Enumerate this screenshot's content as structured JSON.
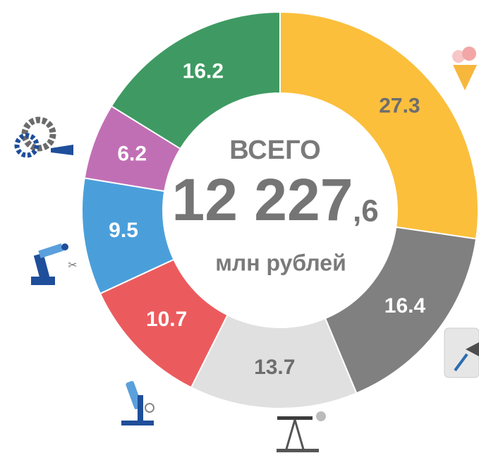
{
  "chart_data": {
    "type": "donut",
    "values": [
      27.3,
      16.4,
      13.7,
      10.7,
      9.5,
      6.2,
      16.2
    ],
    "colors": [
      "#fbbf3c",
      "#808080",
      "#e0e0e0",
      "#eb5b5e",
      "#4a9fdb",
      "#c16fb5",
      "#3e9a62"
    ],
    "label_colors": [
      "#6d6d6d",
      "#ffffff",
      "#6d6d6d",
      "#ffffff",
      "#ffffff",
      "#ffffff",
      "#ffffff"
    ],
    "center": {
      "heading": "ВСЕГО",
      "total_integer": "12 227",
      "total_fraction": ",6",
      "unit": "млн рублей"
    }
  }
}
